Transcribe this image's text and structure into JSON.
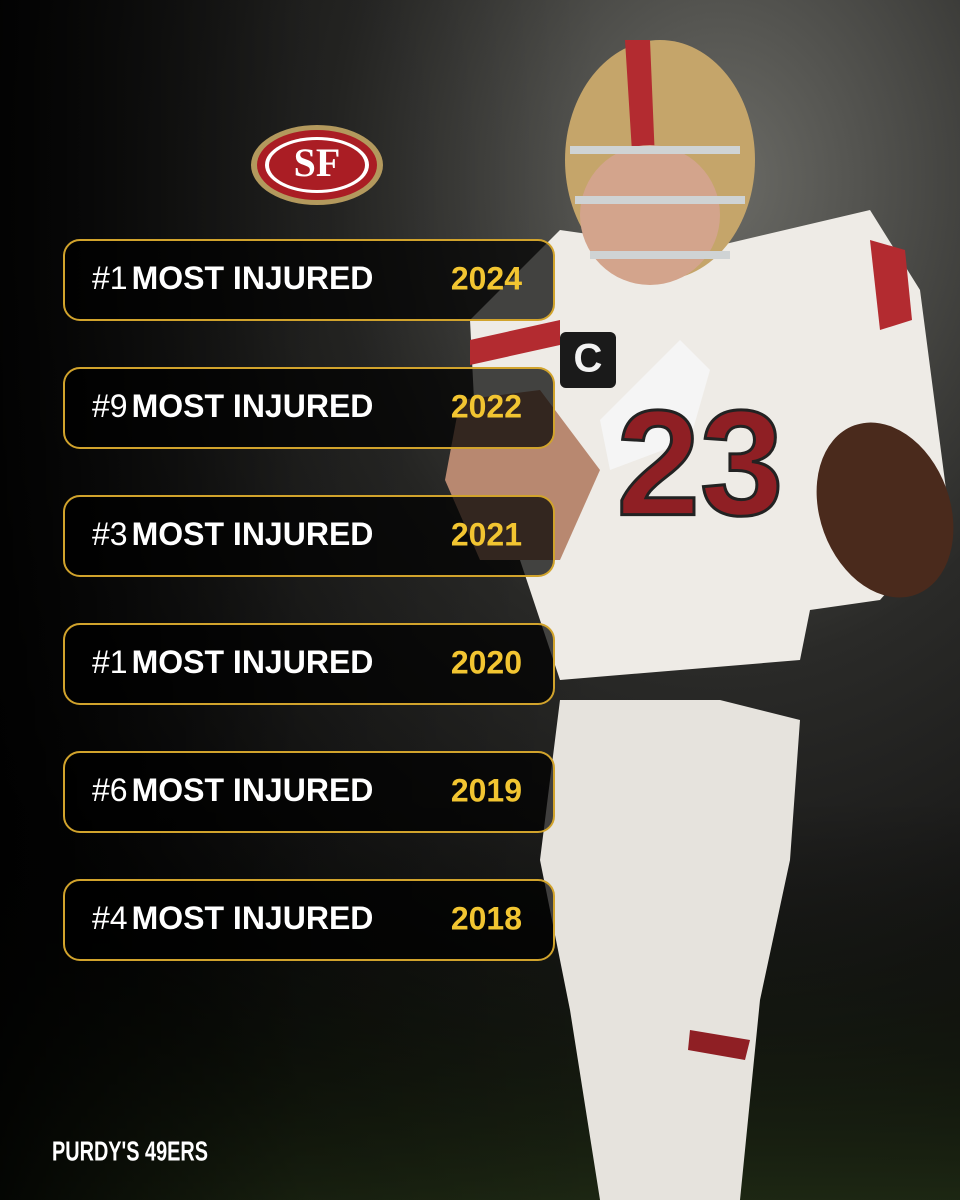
{
  "logo": {
    "text": "SF"
  },
  "rows": [
    {
      "rank": "#1",
      "label": "MOST INJURED",
      "year": "2024"
    },
    {
      "rank": "#9",
      "label": "MOST INJURED",
      "year": "2022"
    },
    {
      "rank": "#3",
      "label": "MOST INJURED",
      "year": "2021"
    },
    {
      "rank": "#1",
      "label": "MOST INJURED",
      "year": "2020"
    },
    {
      "rank": "#6",
      "label": "MOST INJURED",
      "year": "2019"
    },
    {
      "rank": "#4",
      "label": "MOST INJURED",
      "year": "2018"
    }
  ],
  "player": {
    "jersey_number": "23",
    "captain_patch": "C"
  },
  "footer": {
    "brand": "PURDY'S 49ERS"
  }
}
